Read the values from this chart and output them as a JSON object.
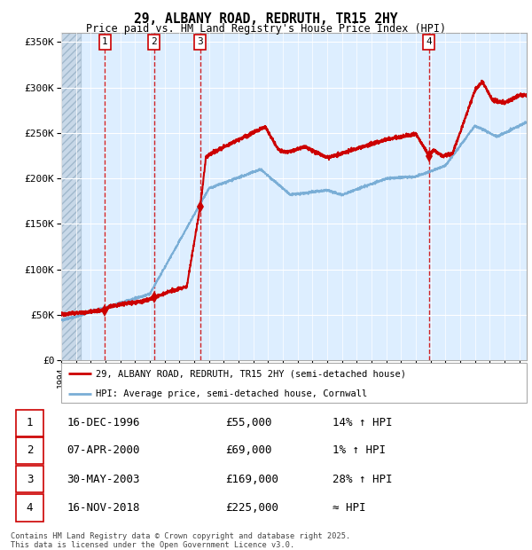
{
  "title": "29, ALBANY ROAD, REDRUTH, TR15 2HY",
  "subtitle": "Price paid vs. HM Land Registry's House Price Index (HPI)",
  "ylabel_ticks": [
    "£0",
    "£50K",
    "£100K",
    "£150K",
    "£200K",
    "£250K",
    "£300K",
    "£350K"
  ],
  "ytick_values": [
    0,
    50000,
    100000,
    150000,
    200000,
    250000,
    300000,
    350000
  ],
  "ylim": [
    0,
    360000
  ],
  "xlim_start": 1994.0,
  "xlim_end": 2025.5,
  "red_line_color": "#cc0000",
  "blue_line_color": "#7aaed6",
  "background_color": "#ddeeff",
  "grid_color": "#ffffff",
  "dashed_line_color": "#cc0000",
  "transactions": [
    {
      "id": 1,
      "date_label": "16-DEC-1996",
      "x": 1996.96,
      "price": 55000,
      "pct": "14%",
      "dir": "↑"
    },
    {
      "id": 2,
      "date_label": "07-APR-2000",
      "x": 2000.27,
      "price": 69000,
      "pct": "1%",
      "dir": "↑"
    },
    {
      "id": 3,
      "date_label": "30-MAY-2003",
      "x": 2003.41,
      "price": 169000,
      "pct": "28%",
      "dir": "↑"
    },
    {
      "id": 4,
      "date_label": "16-NOV-2018",
      "x": 2018.87,
      "price": 225000,
      "pct": "≈",
      "dir": ""
    }
  ],
  "legend_red_label": "29, ALBANY ROAD, REDRUTH, TR15 2HY (semi-detached house)",
  "legend_blue_label": "HPI: Average price, semi-detached house, Cornwall",
  "footer": "Contains HM Land Registry data © Crown copyright and database right 2025.\nThis data is licensed under the Open Government Licence v3.0.",
  "hatch_end": 1995.3
}
